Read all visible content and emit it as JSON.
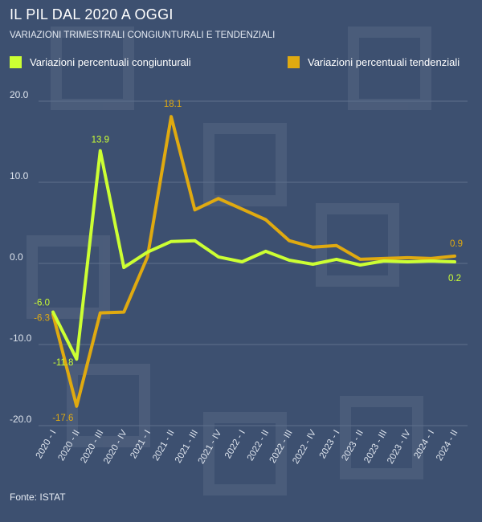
{
  "title": "IL PIL DAL 2020 A OGGI",
  "subtitle": "VARIAZIONI TRIMESTRALI CONGIUNTURALI E TENDENZIALI",
  "source": "Fonte: ISTAT",
  "colors": {
    "background": "#3d5070",
    "congiunturali": "#ccff33",
    "tendenziali": "#e0aa10",
    "grid": "#5e6f8c"
  },
  "chart_data": {
    "type": "line",
    "title": "IL PIL DAL 2020 A OGGI",
    "subtitle": "VARIAZIONI TRIMESTRALI CONGIUNTURALI E TENDENZIALI",
    "x": [
      "2020 - I",
      "2020 - II",
      "2020 - III",
      "2020 - IV",
      "2021 - I",
      "2021 - II",
      "2021 - III",
      "2021 - IV",
      "2022 - I",
      "2022 - II",
      "2022 - III",
      "2022 - IV",
      "2023 - I",
      "2023 - II",
      "2023 - III",
      "2023 - IV",
      "2024 - I",
      "2024 - II"
    ],
    "yticks": [
      "20.0",
      "10.0",
      "0.0",
      "-10.0",
      "-20.0"
    ],
    "ylim": [
      -20,
      20
    ],
    "grid": true,
    "legend_position": "top",
    "series": [
      {
        "name": "Variazioni percentuali congiunturali",
        "values": [
          -6.0,
          -11.8,
          13.9,
          -0.5,
          1.4,
          2.7,
          2.8,
          0.8,
          0.2,
          1.5,
          0.4,
          -0.1,
          0.5,
          -0.2,
          0.3,
          0.2,
          0.3,
          0.2
        ],
        "labels": [
          {
            "index": 0,
            "text": "-6.0"
          },
          {
            "index": 1,
            "text": "-11.8"
          },
          {
            "index": 2,
            "text": "13.9"
          },
          {
            "index": 17,
            "text": "0.2"
          }
        ]
      },
      {
        "name": "Variazioni percentuali tendenziali",
        "values": [
          -6.3,
          -17.6,
          -6.1,
          -6.0,
          0.8,
          18.1,
          6.6,
          8.0,
          6.7,
          5.4,
          2.8,
          2.0,
          2.2,
          0.5,
          0.6,
          0.7,
          0.6,
          0.9
        ],
        "labels": [
          {
            "index": 0,
            "text": "-6.3"
          },
          {
            "index": 1,
            "text": "-17.6"
          },
          {
            "index": 5,
            "text": "18.1"
          },
          {
            "index": 17,
            "text": "0.9"
          }
        ]
      }
    ]
  }
}
